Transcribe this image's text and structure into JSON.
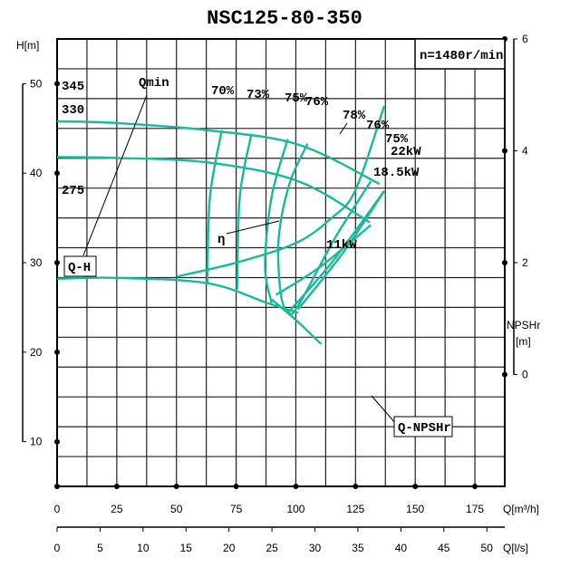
{
  "chart_data": {
    "type": "line",
    "title": "NSC125-80-350",
    "speed_label": "n=1480r/min",
    "xlabel": "Q[m³/h]",
    "xlabel_ls": "Q[l/s]",
    "ylabel": "H[m]",
    "ylabel_npsh": "NPSHr",
    "ylabel_npsh_unit": "[m]",
    "xlim": [
      0,
      187.5
    ],
    "ylim": [
      5,
      55
    ],
    "npsh_lim": [
      -2,
      6
    ],
    "grid": true,
    "x_ticks": [
      "0",
      "25",
      "50",
      "75",
      "100",
      "125",
      "150",
      "175"
    ],
    "x_ticks_ls": [
      "0",
      "5",
      "10",
      "15",
      "20",
      "25",
      "30",
      "35",
      "40",
      "45",
      "50"
    ],
    "y_ticks": [
      "50",
      "40",
      "30",
      "20",
      "10"
    ],
    "npsh_ticks": [
      "6",
      "4",
      "2",
      "0"
    ],
    "color": "#1ab99b",
    "qh_label": "Q-H",
    "qmin_label": "Qmin",
    "eta_label": "η",
    "npsh_label": "Q-NPSHr",
    "impellers": [
      {
        "name": "345",
        "x": [
          0,
          25,
          63,
          101,
          135
        ],
        "y": [
          45.8,
          45.6,
          44.8,
          43.2,
          38.8
        ]
      },
      {
        "name": "330",
        "x": [
          0,
          25,
          63,
          101,
          131
        ],
        "y": [
          41.8,
          41.7,
          41.2,
          39.1,
          34.5
        ]
      },
      {
        "name": "275",
        "x": [
          0,
          25,
          63,
          88,
          101
        ],
        "y": [
          28.2,
          28.3,
          27.7,
          25.5,
          24.4
        ]
      }
    ],
    "efficiency": [
      {
        "name": "70%",
        "x": [
          69,
          64,
          62.9
        ],
        "y": [
          44.8,
          37.3,
          27.7
        ]
      },
      {
        "name": "73%",
        "x": [
          81.4,
          76.5,
          75.4
        ],
        "y": [
          44.4,
          37.3,
          27.0
        ]
      },
      {
        "name": "75%",
        "x": [
          96.6,
          89.8,
          87.1,
          89.8
        ],
        "y": [
          43.8,
          37.3,
          29.7,
          25.5
        ]
      },
      {
        "name": "76%",
        "x": [
          104.9,
          97.3,
          92.8,
          93.6,
          96.6,
          101,
          116.3,
          131.4
        ],
        "y": [
          43.3,
          38.8,
          32.7,
          26.7,
          24.5,
          25.2,
          32.7,
          39.1
        ]
      },
      {
        "name": "78%",
        "x": [],
        "y": []
      },
      {
        "name": "75%",
        "x": [
          101,
          120,
          137
        ],
        "y": [
          24.8,
          31.2,
          38
        ]
      }
    ],
    "power": [
      {
        "name": "22kW",
        "x": [
          97,
          115,
          137
        ],
        "y": [
          24.5,
          30.0,
          38.0
        ]
      },
      {
        "name": "18.5kW",
        "x": [
          91.7,
          110,
          131.4
        ],
        "y": [
          26.4,
          29.5,
          34.2
        ]
      },
      {
        "name": "11kW",
        "x": [
          89.8,
          100,
          110.6
        ],
        "y": [
          25.9,
          23.6,
          20.9
        ]
      }
    ],
    "npsh": {
      "x": [
        50,
        75,
        100,
        115,
        125,
        137
      ],
      "y": [
        1.75,
        2.0,
        2.35,
        2.8,
        3.3,
        4.8
      ]
    }
  }
}
